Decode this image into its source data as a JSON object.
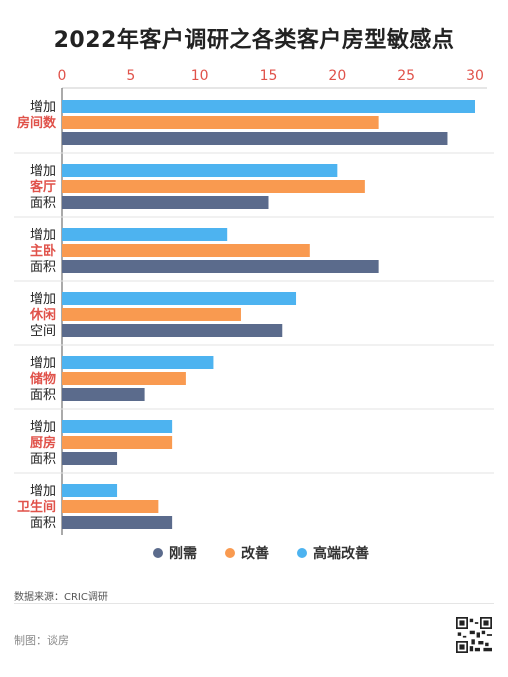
{
  "chart_data": {
    "type": "bar",
    "orientation": "horizontal",
    "title": "2022年客户调研之各类客户房型敏感点",
    "categories": [
      {
        "line1": "增加",
        "line2": "房间数",
        "line3": ""
      },
      {
        "line1": "增加",
        "line2": "客厅",
        "line3": "面积"
      },
      {
        "line1": "增加",
        "line2": "主卧",
        "line3": "面积"
      },
      {
        "line1": "增加",
        "line2": "休闲",
        "line3": "空间"
      },
      {
        "line1": "增加",
        "line2": "储物",
        "line3": "面积"
      },
      {
        "line1": "增加",
        "line2": "厨房",
        "line3": "面积"
      },
      {
        "line1": "增加",
        "line2": "卫生间",
        "line3": "面积"
      }
    ],
    "series": [
      {
        "name": "高端改善",
        "color": "#4db3f0",
        "values": [
          30,
          20,
          12,
          17,
          11,
          8,
          4
        ]
      },
      {
        "name": "改善",
        "color": "#f99a50",
        "values": [
          23,
          22,
          18,
          13,
          9,
          8,
          7
        ]
      },
      {
        "name": "刚需",
        "color": "#5b6b8c",
        "values": [
          28,
          15,
          23,
          16,
          6,
          4,
          8
        ]
      }
    ],
    "legend_order": [
      "刚需",
      "改善",
      "高端改善"
    ],
    "xlim": [
      0,
      30
    ],
    "xticks": [
      0,
      5,
      10,
      15,
      20,
      25,
      30
    ],
    "tick_color": "#e0524a",
    "highlight_color": "#e0524a",
    "legend_position": "bottom",
    "grid": false
  },
  "footer": {
    "source": "数据来源：CRIC调研",
    "maker": "制图：谈房"
  }
}
